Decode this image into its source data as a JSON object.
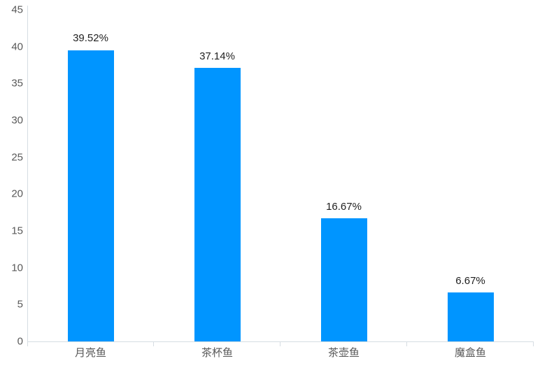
{
  "chart_data": {
    "type": "bar",
    "title": "",
    "xlabel": "",
    "ylabel": "",
    "categories": [
      "月亮鱼",
      "茶杯鱼",
      "茶壶鱼",
      "魔盒鱼"
    ],
    "values": [
      39.52,
      37.14,
      16.67,
      6.67
    ],
    "data_labels": [
      "39.52%",
      "37.14%",
      "16.67%",
      "6.67%"
    ],
    "ylim": [
      0,
      45
    ],
    "yticks": [
      0,
      5,
      10,
      15,
      20,
      25,
      30,
      35,
      40,
      45
    ],
    "grid": false,
    "legend": false,
    "colors": {
      "bar": "#0095ff",
      "axis_line": "#d6dde2",
      "tick_label": "#595959",
      "data_label": "#1f1f1f",
      "background": "#ffffff"
    }
  }
}
